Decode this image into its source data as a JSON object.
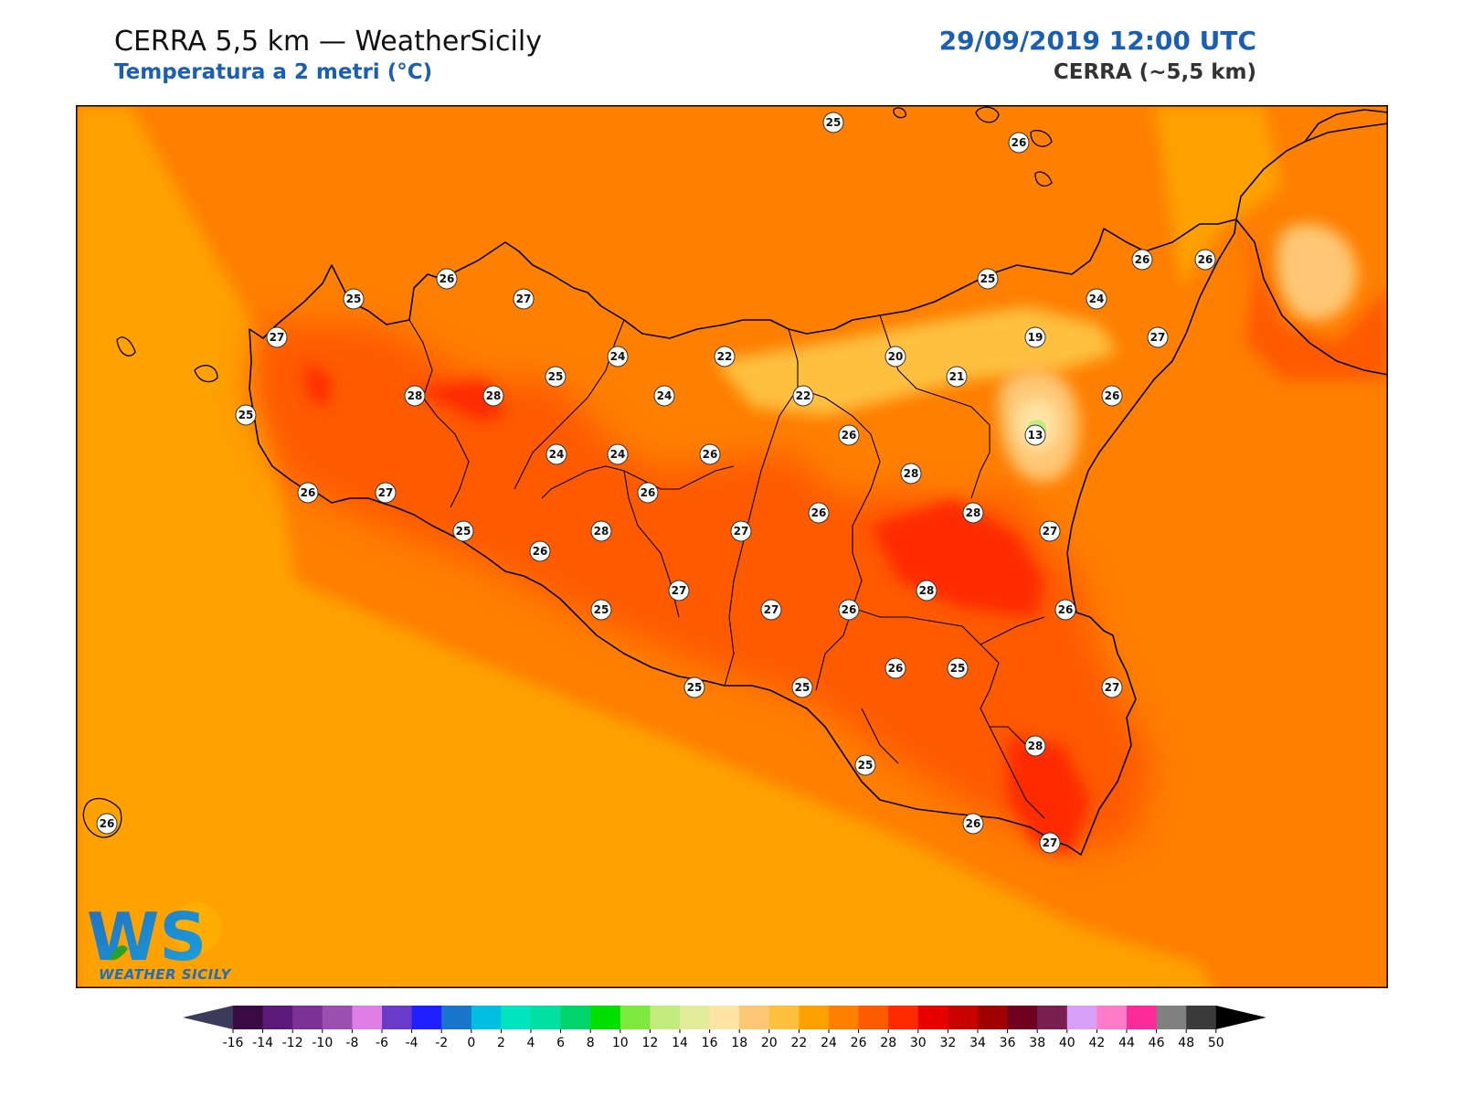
{
  "header": {
    "title": "CERRA 5,5 km — WeatherSicily",
    "subtitle": "Temperatura a 2 metri (°C)",
    "datetime": "29/09/2019 12:00 UTC",
    "model": "CERRA (~5,5 km)"
  },
  "logo": {
    "mark": "WS",
    "text": "WEATHER SICILY"
  },
  "map": {
    "background_color": "#ff7f00",
    "sea_color": "#ffa100",
    "coastline_color": "#000000",
    "station_labels": [
      {
        "v": "25"
      },
      {
        "v": "26"
      },
      {
        "v": "26"
      },
      {
        "v": "27"
      },
      {
        "v": "25"
      },
      {
        "v": "27"
      },
      {
        "v": "25"
      },
      {
        "v": "28"
      },
      {
        "v": "28"
      },
      {
        "v": "25"
      },
      {
        "v": "24"
      },
      {
        "v": "22"
      },
      {
        "v": "24"
      },
      {
        "v": "20"
      },
      {
        "v": "19"
      },
      {
        "v": "24"
      },
      {
        "v": "25"
      },
      {
        "v": "26"
      },
      {
        "v": "26"
      },
      {
        "v": "27"
      },
      {
        "v": "21"
      },
      {
        "v": "22"
      },
      {
        "v": "24"
      },
      {
        "v": "26"
      },
      {
        "v": "13"
      },
      {
        "v": "26"
      },
      {
        "v": "24"
      },
      {
        "v": "26"
      },
      {
        "v": "28"
      },
      {
        "v": "26"
      },
      {
        "v": "27"
      },
      {
        "v": "26"
      },
      {
        "v": "28"
      },
      {
        "v": "27"
      },
      {
        "v": "26"
      },
      {
        "v": "27"
      },
      {
        "v": "25"
      },
      {
        "v": "26"
      },
      {
        "v": "28"
      },
      {
        "v": "27"
      },
      {
        "v": "27"
      },
      {
        "v": "26"
      },
      {
        "v": "28"
      },
      {
        "v": "25"
      },
      {
        "v": "26"
      },
      {
        "v": "26"
      },
      {
        "v": "25"
      },
      {
        "v": "25"
      },
      {
        "v": "27"
      },
      {
        "v": "25"
      },
      {
        "v": "25"
      },
      {
        "v": "28"
      },
      {
        "v": "26"
      },
      {
        "v": "27"
      },
      {
        "v": "26"
      }
    ]
  },
  "colorbar": {
    "colors": [
      "#3b0a45",
      "#5b1a7a",
      "#7b3294",
      "#9b4fb0",
      "#e07ee8",
      "#6a3acb",
      "#1f1fff",
      "#1874cd",
      "#00bfe0",
      "#00e5c0",
      "#00e0a0",
      "#00d46a",
      "#00e000",
      "#7ee83c",
      "#c2ed7e",
      "#e2ec9b",
      "#ffe4a6",
      "#ffc775",
      "#ffc040",
      "#ff9f00",
      "#ff7f00",
      "#ff5a00",
      "#ff2a00",
      "#e60000",
      "#c80000",
      "#a00000",
      "#700020",
      "#7a2050",
      "#d8a0f8",
      "#ff7ac8",
      "#ff2a9a",
      "#808080",
      "#3a3a3a"
    ],
    "under_color": "#3a3a5a",
    "over_color": "#000000",
    "ticks": [
      "-16",
      "-14",
      "-12",
      "-10",
      "-8",
      "-6",
      "-4",
      "-2",
      "0",
      "2",
      "4",
      "6",
      "8",
      "10",
      "12",
      "14",
      "16",
      "18",
      "20",
      "22",
      "24",
      "26",
      "28",
      "30",
      "32",
      "34",
      "36",
      "38",
      "40",
      "42",
      "44",
      "46",
      "48",
      "50"
    ]
  }
}
